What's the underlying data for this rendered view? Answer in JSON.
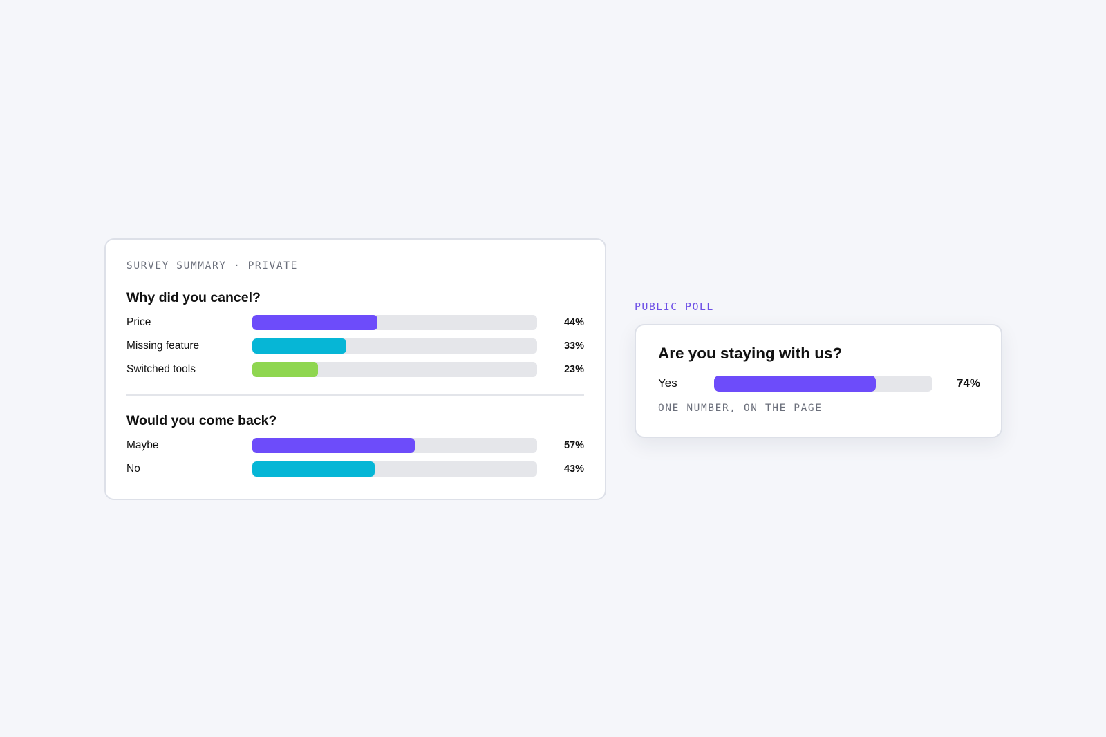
{
  "survey": {
    "eyebrow": "SURVEY SUMMARY · PRIVATE",
    "questions": [
      {
        "title": "Why did you cancel?",
        "rows": [
          {
            "label": "Price",
            "value": 44,
            "display": "44%",
            "color": "#6d4cfa"
          },
          {
            "label": "Missing feature",
            "value": 33,
            "display": "33%",
            "color": "#06b6d6"
          },
          {
            "label": "Switched tools",
            "value": 23,
            "display": "23%",
            "color": "#8fd650"
          }
        ]
      },
      {
        "title": "Would you come back?",
        "rows": [
          {
            "label": "Maybe",
            "value": 57,
            "display": "57%",
            "color": "#6d4cfa"
          },
          {
            "label": "No",
            "value": 43,
            "display": "43%",
            "color": "#06b6d6"
          }
        ]
      }
    ]
  },
  "poll": {
    "eyebrow": "PUBLIC POLL",
    "question": "Are you staying with us?",
    "row": {
      "label": "Yes",
      "value": 74,
      "display": "74%",
      "color": "#6d4cfa"
    },
    "note": "ONE NUMBER, ON THE PAGE"
  }
}
